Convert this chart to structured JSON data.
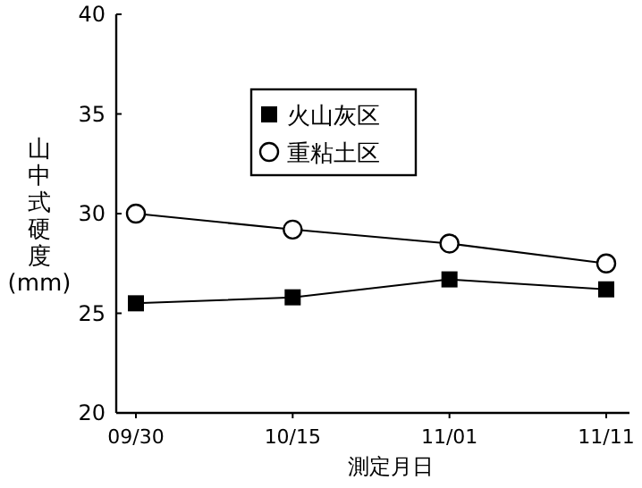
{
  "chart_data": {
    "type": "line",
    "xlabel": "測定月日",
    "ylabel": "山中式硬度(mm)",
    "categories": [
      "09/30",
      "10/15",
      "11/01",
      "11/11"
    ],
    "series": [
      {
        "name": "火山灰区",
        "color": "#000000",
        "marker": "square",
        "values": [
          25.5,
          25.8,
          26.7,
          26.2
        ]
      },
      {
        "name": "重粘土区",
        "color": "#000000",
        "marker": "circle",
        "values": [
          30.0,
          29.2,
          28.5,
          27.5
        ]
      }
    ],
    "ylim": [
      20,
      40
    ],
    "yticks": [
      20,
      25,
      30,
      35,
      40
    ],
    "legend": "top",
    "grid": false
  }
}
